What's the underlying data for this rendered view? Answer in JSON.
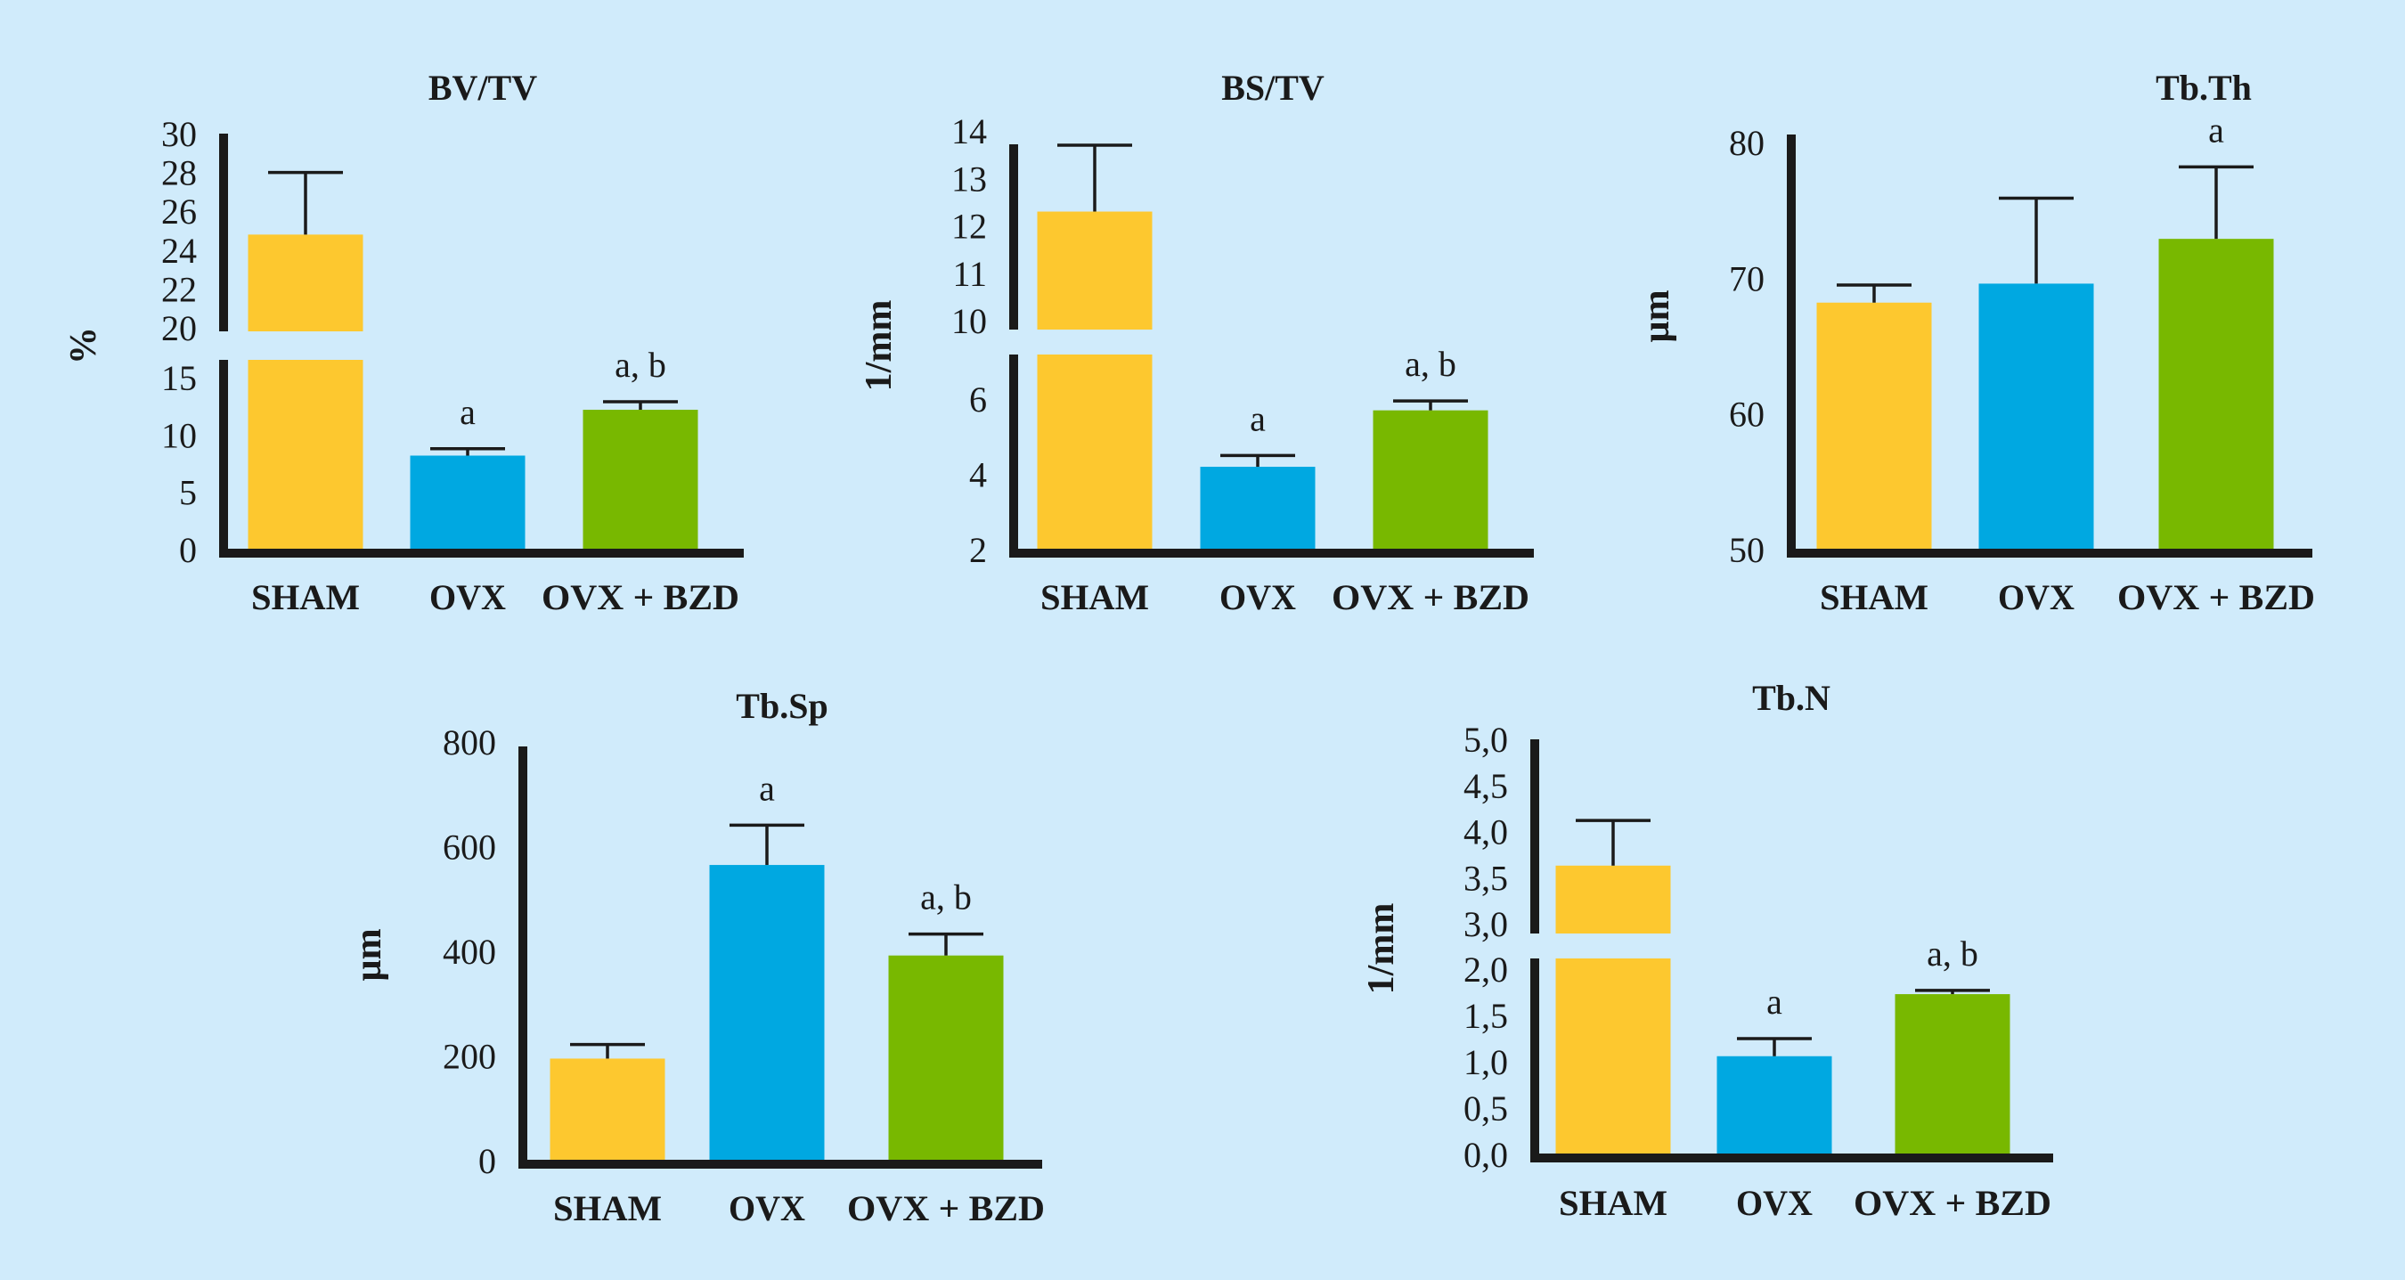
{
  "figure": {
    "background": "#d0ebfb",
    "groups": [
      "SHAM",
      "OVX",
      "OVX + BZD"
    ],
    "group_colors": [
      "#fdc82f",
      "#00a8e1",
      "#78b800"
    ]
  },
  "chart_data": [
    {
      "type": "bar",
      "title": "BV/TV",
      "xlabel": "",
      "ylabel": "%",
      "categories": [
        "SHAM",
        "OVX",
        "OVX + BZD"
      ],
      "values": [
        24.8,
        8.2,
        12.2
      ],
      "error_upper": [
        28.0,
        8.8,
        12.9
      ],
      "annotations": [
        "",
        "a",
        "a, b"
      ],
      "axis_break": {
        "lower": [
          0,
          15
        ],
        "upper": [
          20,
          30
        ]
      },
      "yticks_lower": [
        "0",
        "5",
        "10",
        "15"
      ],
      "ytick_values_lower": [
        0,
        5,
        10,
        15
      ],
      "yticks_upper": [
        "20",
        "22",
        "24",
        "26",
        "28",
        "30"
      ],
      "ytick_values_upper": [
        20,
        22,
        24,
        26,
        28,
        30
      ],
      "grid": false,
      "legend": "none"
    },
    {
      "type": "bar",
      "title": "BS/TV",
      "xlabel": "",
      "ylabel": "1/mm",
      "categories": [
        "SHAM",
        "OVX",
        "OVX + BZD"
      ],
      "values": [
        12.3,
        4.2,
        5.7
      ],
      "error_upper": [
        13.7,
        4.5,
        5.95
      ],
      "annotations": [
        "",
        "a",
        "a, b"
      ],
      "axis_break": {
        "lower": [
          2,
          7
        ],
        "upper": [
          10,
          14
        ]
      },
      "yticks_lower": [
        "2",
        "4",
        "6"
      ],
      "ytick_values_lower": [
        2,
        4,
        6
      ],
      "yticks_upper": [
        "10",
        "11",
        "12",
        "13",
        "14"
      ],
      "ytick_values_upper": [
        10,
        11,
        12,
        13,
        14
      ],
      "grid": false,
      "legend": "none"
    },
    {
      "type": "bar",
      "title": "Tb.Th",
      "xlabel": "",
      "ylabel": "µm",
      "categories": [
        "SHAM",
        "OVX",
        "OVX + BZD"
      ],
      "values": [
        68.2,
        69.6,
        72.9
      ],
      "error_upper": [
        69.5,
        75.9,
        78.2
      ],
      "annotations": [
        "",
        "",
        "a"
      ],
      "ylim": [
        50,
        80
      ],
      "yticks": [
        "50",
        "60",
        "70",
        "80"
      ],
      "ytick_values": [
        50,
        60,
        70,
        80
      ],
      "grid": false,
      "legend": "none"
    },
    {
      "type": "bar",
      "title": "Tb.Sp",
      "xlabel": "",
      "ylabel": "µm",
      "categories": [
        "SHAM",
        "OVX",
        "OVX + BZD"
      ],
      "values": [
        195,
        565,
        392
      ],
      "error_upper": [
        222,
        641,
        433
      ],
      "annotations": [
        "",
        "a",
        "a, b"
      ],
      "ylim": [
        0,
        800
      ],
      "yticks": [
        "0",
        "200",
        "400",
        "600",
        "800"
      ],
      "ytick_values": [
        0,
        200,
        400,
        600,
        800
      ],
      "grid": false,
      "legend": "none"
    },
    {
      "type": "bar",
      "title": "Tb.N",
      "xlabel": "",
      "ylabel": "1/mm",
      "categories": [
        "SHAM",
        "OVX",
        "OVX + BZD"
      ],
      "values": [
        3.63,
        1.06,
        1.73
      ],
      "error_upper": [
        4.12,
        1.25,
        1.77
      ],
      "annotations": [
        "",
        "a",
        "a, b"
      ],
      "axis_break": {
        "lower": [
          0,
          2.1
        ],
        "upper": [
          2.9,
          5.0
        ]
      },
      "yticks_lower": [
        "0,0",
        "0,5",
        "1,0",
        "1,5",
        "2,0"
      ],
      "ytick_values_lower": [
        0,
        0.5,
        1.0,
        1.5,
        2.0
      ],
      "yticks_upper": [
        "3,0",
        "3,5",
        "4,0",
        "4,5",
        "5,0"
      ],
      "ytick_values_upper": [
        3.0,
        3.5,
        4.0,
        4.5,
        5.0
      ],
      "grid": false,
      "legend": "none"
    }
  ]
}
